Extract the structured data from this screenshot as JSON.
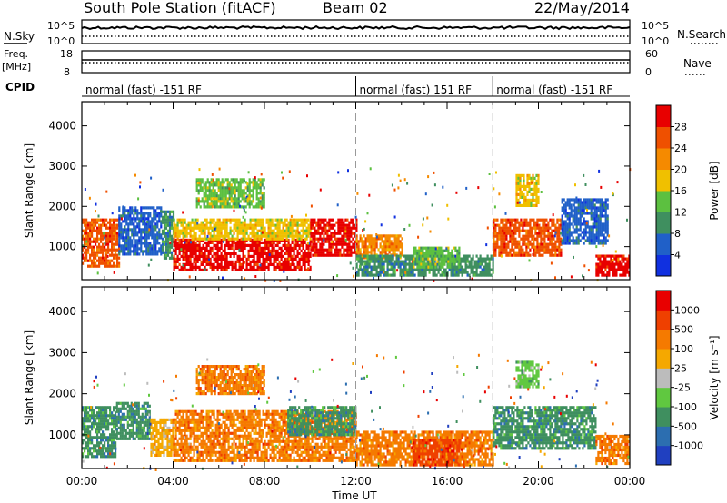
{
  "header": {
    "station": "South Pole Station (fitACF)",
    "beam": "Beam 02",
    "date": "22/May/2014"
  },
  "noise_panel": {
    "left_label": "N.Sky",
    "right_label": "N.Search",
    "left_ticks": [
      "10^5",
      "10^0"
    ],
    "right_ticks": [
      "10^5",
      "10^0"
    ]
  },
  "freq_panel": {
    "left_label_line1": "Freq.",
    "left_label_line2": "[MHz]",
    "left_ticks": [
      "18",
      "8"
    ],
    "right_label": "Nave",
    "right_ticks": [
      "60",
      "0"
    ]
  },
  "cpid": {
    "label": "CPID",
    "segments": [
      {
        "text": "normal (fast) -151 RF",
        "start_h": 0,
        "end_h": 12
      },
      {
        "text": "normal (fast) 151 RF",
        "start_h": 12,
        "end_h": 18
      },
      {
        "text": "normal (fast) -151 RF",
        "start_h": 18,
        "end_h": 24
      }
    ]
  },
  "chart_data": [
    {
      "type": "heatmap",
      "name": "power",
      "ylabel": "Slant Range [km]",
      "yticks": [
        1000,
        2000,
        3000,
        4000
      ],
      "ylim": [
        180,
        4600
      ],
      "xlim_hours": [
        0,
        24
      ],
      "colorbar": {
        "label": "Power [dB]",
        "ticks": [
          "4",
          "8",
          "12",
          "16",
          "20",
          "24",
          "28"
        ],
        "colors": [
          "#1030e0",
          "#2060c8",
          "#3f8f5f",
          "#5cc040",
          "#f0c000",
          "#f58a00",
          "#ef5000",
          "#e80000"
        ]
      },
      "regions": [
        {
          "t0": 0.0,
          "t1": 1.6,
          "r0": 500,
          "r1": 1700,
          "level": 6
        },
        {
          "t0": 1.6,
          "t1": 3.5,
          "r0": 800,
          "r1": 2000,
          "level": 1
        },
        {
          "t0": 3.5,
          "t1": 4.0,
          "r0": 700,
          "r1": 1900,
          "level": 2
        },
        {
          "t0": 4.0,
          "t1": 10.0,
          "r0": 400,
          "r1": 1200,
          "level": 7
        },
        {
          "t0": 4.0,
          "t1": 10.0,
          "r0": 1200,
          "r1": 1700,
          "level": 4
        },
        {
          "t0": 10.0,
          "t1": 12.0,
          "r0": 800,
          "r1": 1700,
          "level": 7
        },
        {
          "t0": 5.0,
          "t1": 8.0,
          "r0": 2000,
          "r1": 2700,
          "level": 3
        },
        {
          "t0": 12.0,
          "t1": 14.0,
          "r0": 700,
          "r1": 1300,
          "level": 5
        },
        {
          "t0": 12.0,
          "t1": 18.0,
          "r0": 300,
          "r1": 800,
          "level": 2
        },
        {
          "t0": 14.5,
          "t1": 16.5,
          "r0": 500,
          "r1": 1000,
          "level": 3
        },
        {
          "t0": 18.0,
          "t1": 21.0,
          "r0": 800,
          "r1": 1700,
          "level": 6
        },
        {
          "t0": 19.0,
          "t1": 20.0,
          "r0": 2000,
          "r1": 2800,
          "level": 4
        },
        {
          "t0": 21.0,
          "t1": 23.0,
          "r0": 1100,
          "r1": 2200,
          "level": 1
        },
        {
          "t0": 22.5,
          "t1": 24.0,
          "r0": 300,
          "r1": 800,
          "level": 7
        }
      ]
    },
    {
      "type": "heatmap",
      "name": "velocity",
      "ylabel": "Slant Range [km]",
      "yticks": [
        1000,
        2000,
        3000,
        4000
      ],
      "ylim": [
        180,
        4600
      ],
      "xlim_hours": [
        0,
        24
      ],
      "xticks": [
        "00:00",
        "04:00",
        "08:00",
        "12:00",
        "16:00",
        "20:00",
        "00:00"
      ],
      "xlabel": "Time UT",
      "colorbar": {
        "label": "Velocity [m s⁻¹]",
        "ticks": [
          "1000",
          "500",
          "100",
          "25",
          "-25",
          "-100",
          "-500",
          "-1000"
        ],
        "colors": [
          "#2040c0",
          "#2c6eb0",
          "#3f8f5f",
          "#60c840",
          "#bcbcbc",
          "#f5a800",
          "#f57a00",
          "#ef4000",
          "#e80000"
        ]
      },
      "regions": [
        {
          "t0": 0.0,
          "t1": 1.5,
          "r0": 500,
          "r1": 1700,
          "level": 2
        },
        {
          "t0": 1.5,
          "t1": 3.0,
          "r0": 900,
          "r1": 1800,
          "level": 2
        },
        {
          "t0": 3.0,
          "t1": 4.0,
          "r0": 500,
          "r1": 1400,
          "level": 5
        },
        {
          "t0": 4.0,
          "t1": 12.0,
          "r0": 400,
          "r1": 1600,
          "level": 6
        },
        {
          "t0": 9.0,
          "t1": 12.0,
          "r0": 1000,
          "r1": 1700,
          "level": 2
        },
        {
          "t0": 5.0,
          "t1": 8.0,
          "r0": 2000,
          "r1": 2700,
          "level": 6
        },
        {
          "t0": 12.0,
          "t1": 18.0,
          "r0": 300,
          "r1": 1100,
          "level": 6
        },
        {
          "t0": 14.5,
          "t1": 16.5,
          "r0": 300,
          "r1": 900,
          "level": 7
        },
        {
          "t0": 18.0,
          "t1": 22.5,
          "r0": 700,
          "r1": 1700,
          "level": 2
        },
        {
          "t0": 19.0,
          "t1": 20.0,
          "r0": 2200,
          "r1": 2800,
          "level": 3
        },
        {
          "t0": 22.5,
          "t1": 24.0,
          "r0": 300,
          "r1": 1000,
          "level": 6
        }
      ]
    }
  ]
}
